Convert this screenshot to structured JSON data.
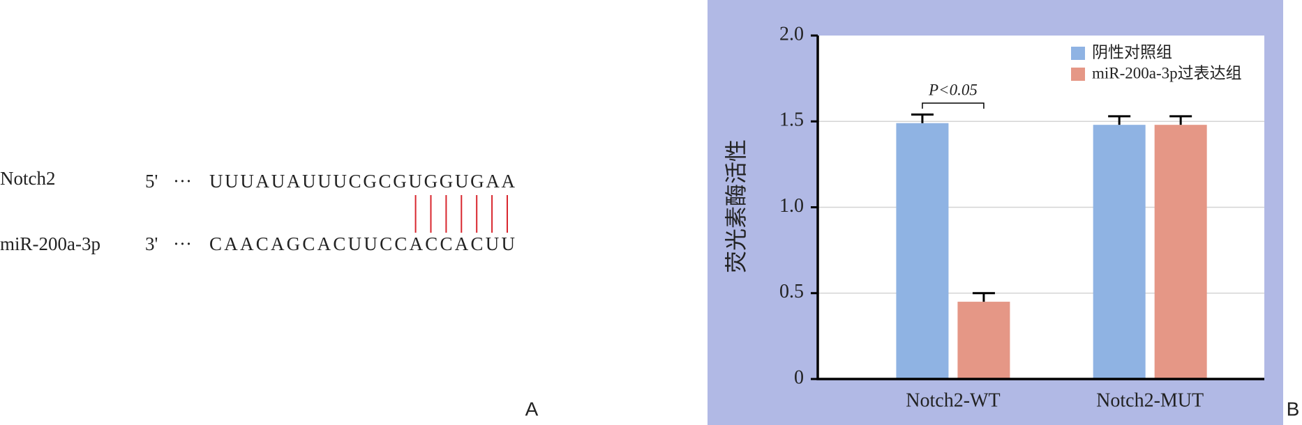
{
  "alignment": {
    "rows": [
      {
        "name": "Notch2",
        "end": "5'",
        "dots": "···",
        "sequence": "UUUAUAUUUCGCGUGGUGAA"
      },
      {
        "name": "miR-200a-3p",
        "end": "3'",
        "dots": "···",
        "sequence": "CAACAGCACUUCCACCACUU"
      }
    ],
    "panel": "A"
  },
  "chart_data": {
    "type": "bar",
    "panel": "B",
    "y_label": "荧光素酶活性",
    "categories": [
      "Notch2-WT",
      "Notch2-MUT"
    ],
    "series": [
      {
        "name": "阴性对照组",
        "color": "#8fb3e3",
        "values": [
          1.49,
          1.48
        ],
        "errors": [
          0.05,
          0.05
        ]
      },
      {
        "name": "miR-200a-3p过表达组",
        "color": "#e59786",
        "values": [
          0.45,
          1.48
        ],
        "errors": [
          0.05,
          0.05
        ]
      }
    ],
    "ylim": [
      0,
      2
    ],
    "yticks": [
      0,
      0.5,
      {
        "value": 1,
        "label": "1.0"
      },
      1.5,
      {
        "value": 2,
        "label": "2.0"
      }
    ],
    "grid": true,
    "legend": "top-right",
    "annotation": "P<0.05"
  }
}
